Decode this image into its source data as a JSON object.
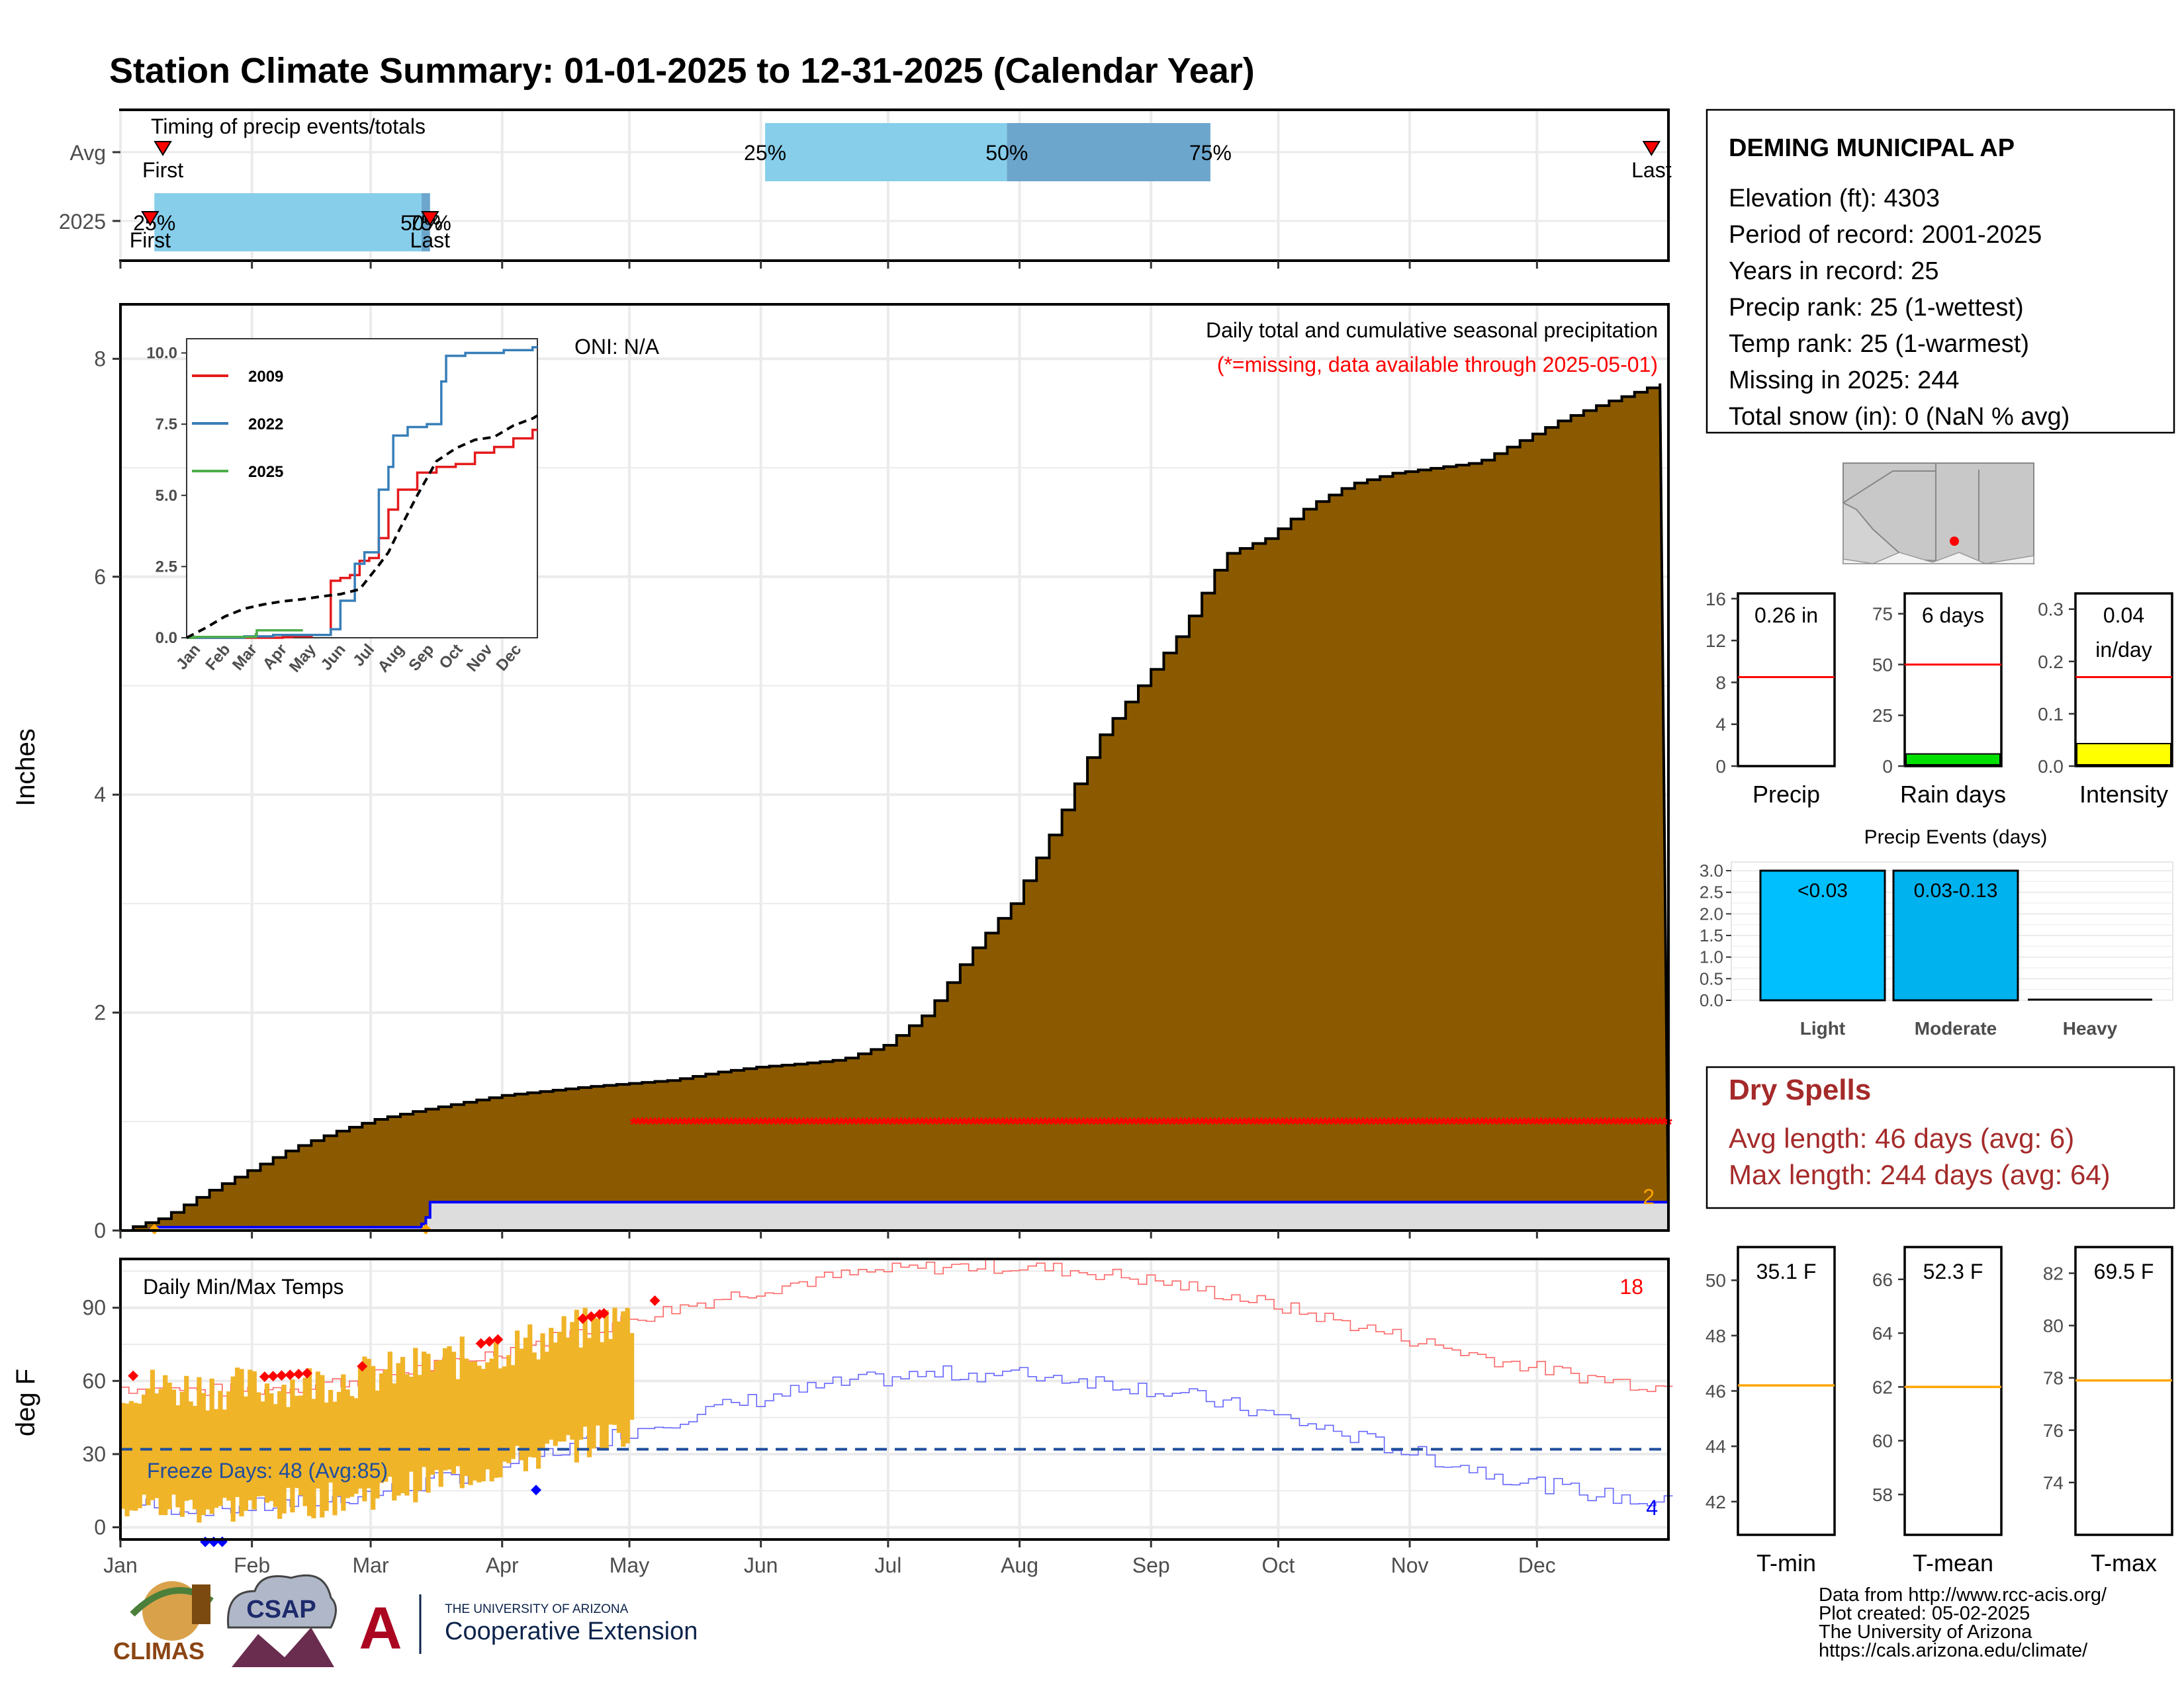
{
  "title": "Station Climate Summary: 01-01-2025 to 12-31-2025 (Calendar Year)",
  "months": [
    "Jan",
    "Feb",
    "Mar",
    "Apr",
    "May",
    "Jun",
    "Jul",
    "Aug",
    "Sep",
    "Oct",
    "Nov",
    "Dec"
  ],
  "colors": {
    "title": "#000080",
    "cumulative_fill": "#8B5A00",
    "avg_line": "#000000",
    "precip_line": "#0000FF",
    "missing": "#FF0000",
    "temp_bars": "#F0B429",
    "tmax_avg": "#FF6666",
    "tmin_avg": "#6666FF",
    "freeze_line": "#1F4E9C",
    "dry_spells": "#A52A2A",
    "light_bar": "#00BFFF",
    "moderate_bar": "#00B2EE",
    "quartile_light": "#87CEEB",
    "quartile_dark": "#6CA6CD"
  },
  "timing": {
    "label": "Timing of precip events/totals",
    "rows": [
      "Avg",
      "2025"
    ],
    "avg": {
      "first_label": "First",
      "last_label": "Last",
      "first_day": 10,
      "last_day": 361,
      "q25_label": "25%",
      "q50_label": "50%",
      "q75_label": "75%",
      "q25_day": 152,
      "q50_day": 209,
      "q75_day": 257
    },
    "y2025": {
      "first_label": "First",
      "last_label": "Last",
      "first_day": 7,
      "last_day": 73,
      "q25_label": "25%",
      "q50_label": "50%",
      "q75_label": "75%",
      "q25_day": 8,
      "q50_day": 71,
      "q75_day": 73
    }
  },
  "precip": {
    "ylabel": "Inches",
    "annotation_title": "Daily total and cumulative seasonal precipitation",
    "annotation_missing": "(*=missing, data available through 2025-05-01)",
    "oni": "ONI: N/A",
    "count_label": "2",
    "yticks": [
      "0",
      "2",
      "4",
      "6",
      "8"
    ],
    "ylim": [
      0,
      8.5
    ],
    "missing_start_day": 121,
    "missing_value": 1.0
  },
  "chart_data": [
    {
      "type": "area",
      "name_ref": "cumulative-average-precip",
      "x_unit": "day of year",
      "x": [
        0,
        10,
        20,
        30,
        40,
        50,
        60,
        70,
        80,
        90,
        100,
        110,
        120,
        130,
        140,
        150,
        160,
        170,
        180,
        190,
        200,
        210,
        220,
        230,
        240,
        250,
        260,
        270,
        280,
        290,
        300,
        310,
        320,
        330,
        340,
        350,
        365
      ],
      "y": [
        0,
        0.12,
        0.35,
        0.55,
        0.75,
        0.9,
        1.02,
        1.1,
        1.17,
        1.24,
        1.28,
        1.32,
        1.35,
        1.38,
        1.45,
        1.5,
        1.53,
        1.57,
        1.7,
        2.0,
        2.55,
        3.0,
        3.7,
        4.5,
        5.0,
        5.5,
        6.2,
        6.35,
        6.65,
        6.85,
        6.95,
        7.0,
        7.05,
        7.25,
        7.45,
        7.6,
        7.8
      ]
    },
    {
      "type": "line",
      "name_ref": "cumulative-2025-precip",
      "x": [
        0,
        7,
        8,
        70,
        71,
        72,
        73,
        121
      ],
      "y": [
        0,
        0.01,
        0.03,
        0.03,
        0.06,
        0.12,
        0.26,
        0.26
      ]
    },
    {
      "type": "line",
      "inset": true,
      "legend": [
        "2009",
        "2022",
        "2025"
      ],
      "yticks": [
        "0.0",
        "2.5",
        "5.0",
        "7.5",
        "10.0"
      ],
      "ylim": [
        0,
        10.5
      ],
      "series": [
        {
          "name": "2009",
          "color": "#E41A1C",
          "x": [
            0,
            100,
            110,
            130,
            150,
            160,
            170,
            180,
            190,
            200,
            210,
            220,
            240,
            260,
            280,
            300,
            320,
            340,
            350,
            360,
            365
          ],
          "y": [
            0,
            0.02,
            0.05,
            0.1,
            2.0,
            2.1,
            2.2,
            2.7,
            2.8,
            3.5,
            4.5,
            5.2,
            5.8,
            6.0,
            6.1,
            6.5,
            6.7,
            7.0,
            7.0,
            7.3,
            7.3
          ]
        },
        {
          "name": "2022",
          "color": "#377EB8",
          "x": [
            0,
            60,
            90,
            150,
            160,
            175,
            185,
            200,
            210,
            215,
            230,
            250,
            265,
            270,
            290,
            310,
            330,
            350,
            360,
            365
          ],
          "y": [
            0,
            0.05,
            0.1,
            0.3,
            1.3,
            2.6,
            3.0,
            5.2,
            6.0,
            7.1,
            7.4,
            7.5,
            9.0,
            9.9,
            10.0,
            10.0,
            10.1,
            10.1,
            10.2,
            10.2
          ]
        },
        {
          "name": "2025",
          "color": "#4DAF4A",
          "x": [
            0,
            8,
            72,
            73,
            121
          ],
          "y": [
            0,
            0.03,
            0.12,
            0.26,
            0.26
          ]
        },
        {
          "name": "avg",
          "color": "#000000",
          "dashed": true,
          "x": [
            0,
            20,
            40,
            60,
            80,
            100,
            120,
            140,
            160,
            180,
            200,
            210,
            220,
            240,
            260,
            280,
            300,
            320,
            340,
            360,
            365
          ],
          "y": [
            0,
            0.35,
            0.75,
            1.02,
            1.17,
            1.28,
            1.35,
            1.45,
            1.53,
            1.7,
            2.55,
            3.0,
            3.7,
            5.0,
            6.2,
            6.65,
            6.95,
            7.05,
            7.45,
            7.7,
            7.8
          ]
        }
      ]
    },
    {
      "type": "bar",
      "name_ref": "precip-events",
      "title": "Precip Events (days)",
      "categories": [
        "Light",
        "Moderate",
        "Heavy"
      ],
      "bar_labels": [
        "<0.03",
        "0.03-0.13",
        ""
      ],
      "values": [
        3,
        3,
        0
      ],
      "yticks": [
        "0.0",
        "0.5",
        "1.0",
        "1.5",
        "2.0",
        "2.5",
        "3.0"
      ],
      "ylim": [
        0,
        3.2
      ]
    },
    {
      "type": "line",
      "name_ref": "daily-temps",
      "label": "Daily Min/Max Temps",
      "ylabel": "deg F",
      "yticks": [
        "0",
        "30",
        "60",
        "90"
      ],
      "ylim": [
        -5,
        110
      ],
      "freeze_label": "Freeze Days: 48 (Avg:85)",
      "freeze_value": 32,
      "record_high_count": "18",
      "record_low_count": "4",
      "obs_end_day": 121
    }
  ],
  "station": {
    "name": "DEMING MUNICIPAL AP",
    "lines": [
      "Elevation (ft): 4303",
      "Period of record: 2001-2025",
      "Years in record: 25",
      "Precip rank: 25 (1-wettest)",
      "Temp rank: 25 (1-warmest)",
      "Missing in 2025: 244",
      "Total snow (in): 0 (NaN % avg)"
    ]
  },
  "gauges": [
    {
      "label": "Precip",
      "value_label": "0.26 in",
      "value": 0.26,
      "avg": 8.5,
      "ymax": 16.5,
      "yticks": [
        0,
        4,
        8,
        12,
        16
      ],
      "fill": "#FFFFFF"
    },
    {
      "label": "Rain days",
      "value_label": "6 days",
      "value": 6,
      "avg": 50,
      "ymax": 85,
      "yticks": [
        0,
        25,
        50,
        75
      ],
      "fill": "#00E000"
    },
    {
      "label": "Intensity",
      "value_label": "0.04",
      "value_label2": "in/day",
      "value": 0.043,
      "avg": 0.17,
      "ymax": 0.33,
      "yticks": [
        0.0,
        0.1,
        0.2,
        0.3
      ],
      "fill": "#FFFF00"
    }
  ],
  "dry_spells": {
    "title": "Dry Spells",
    "avg_line": "Avg length: 46 days (avg: 6)",
    "max_line": "Max length: 244 days (avg: 64)"
  },
  "temp_gauges": [
    {
      "label": "T-min",
      "value_label": "35.1 F",
      "avg": 46.2,
      "ymin": 40.8,
      "ymax": 51.2,
      "yticks": [
        42,
        44,
        46,
        48,
        50
      ]
    },
    {
      "label": "T-mean",
      "value_label": "52.3 F",
      "avg": 62.0,
      "ymin": 56.5,
      "ymax": 67.2,
      "yticks": [
        58,
        60,
        62,
        64,
        66
      ]
    },
    {
      "label": "T-max",
      "value_label": "69.5 F",
      "avg": 77.9,
      "ymin": 72.0,
      "ymax": 83.0,
      "yticks": [
        74,
        76,
        78,
        80,
        82
      ]
    }
  ],
  "footer": {
    "lines": [
      "Data from http://www.rcc-acis.org/",
      "Plot created: 05-02-2025",
      "The University of Arizona",
      "https://cals.arizona.edu/climate/"
    ],
    "climas": "CLIMAS",
    "csap": "CSAP",
    "ua_small": "THE UNIVERSITY OF ARIZONA",
    "ua_big": "Cooperative Extension"
  }
}
